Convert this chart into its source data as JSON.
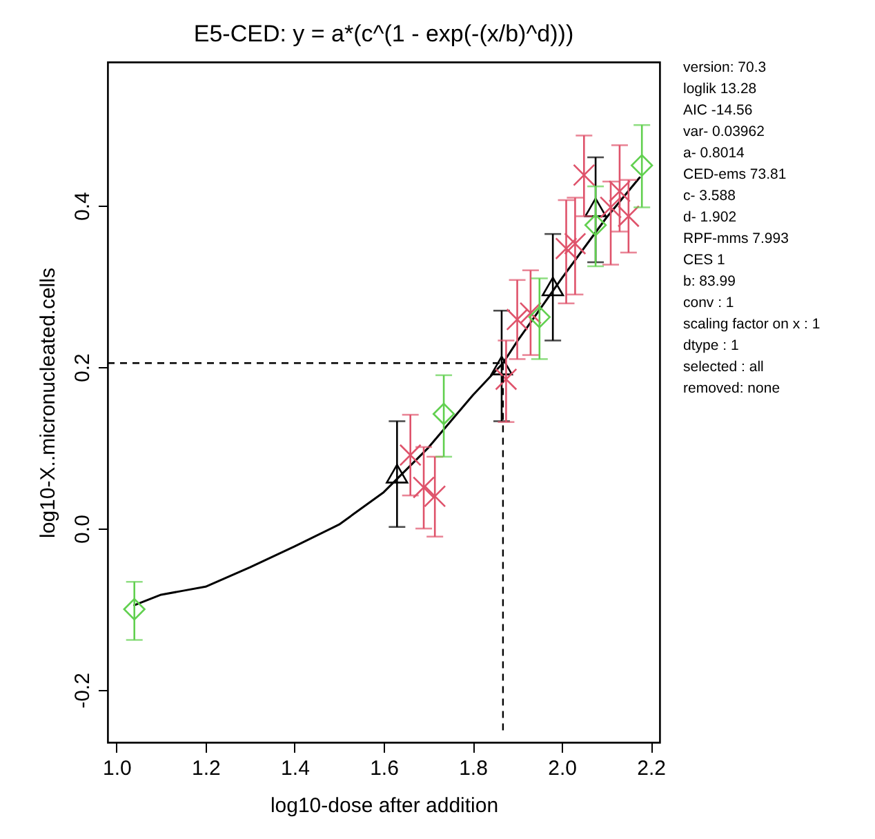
{
  "chart_data": {
    "type": "scatter",
    "title": "E5-CED: y = a*(c^(1 - exp(-(x/b)^d)))",
    "xlabel": "log10-dose after addition",
    "ylabel": "log10-X..micronucleated.cells",
    "xlim": [
      0.98,
      2.22
    ],
    "ylim": [
      -0.265,
      0.578
    ],
    "xticks": [
      {
        "value": 1,
        "label": "1.0"
      },
      {
        "value": 1.2,
        "label": "1.2"
      },
      {
        "value": 1.4,
        "label": "1.4"
      },
      {
        "value": 1.6,
        "label": "1.6"
      },
      {
        "value": 1.8,
        "label": "1.8"
      },
      {
        "value": 2,
        "label": "2.0"
      },
      {
        "value": 2.2,
        "label": "2.2"
      }
    ],
    "yticks": [
      {
        "value": -0.2,
        "label": "-0.2"
      },
      {
        "value": 0,
        "label": "0.0"
      },
      {
        "value": 0.2,
        "label": "0.2"
      },
      {
        "value": 0.4,
        "label": "0.4"
      }
    ],
    "grid": false,
    "series": [
      {
        "type": "line",
        "color": "#000000",
        "line_style": "solid",
        "x": [
          1.04,
          1.1,
          1.15,
          1.2,
          1.3,
          1.4,
          1.5,
          1.6,
          1.7,
          1.8,
          1.868,
          1.9,
          2.0,
          2.1,
          2.175
        ],
        "values": [
          -0.095,
          -0.082,
          -0.077,
          -0.072,
          -0.048,
          -0.022,
          0.005,
          0.045,
          0.1,
          0.165,
          0.205,
          0.232,
          0.31,
          0.385,
          0.435
        ]
      },
      {
        "color": "#000000",
        "marker": "triangle",
        "x": [
          1.63,
          1.865,
          1.98,
          2.076
        ],
        "values": [
          0.068,
          0.202,
          0.3,
          0.398
        ],
        "errors": [
          [
            0.002,
            0.133
          ],
          [
            0.133,
            0.27
          ],
          [
            0.233,
            0.365
          ],
          [
            0.33,
            0.46
          ]
        ]
      },
      {
        "color": "#df536b",
        "marker": "cross",
        "x": [
          1.66,
          1.69,
          1.715,
          1.875,
          1.9,
          1.93,
          2.01,
          2.03,
          2.05,
          2.11,
          2.13,
          2.15
        ],
        "values": [
          0.091,
          0.051,
          0.04,
          0.185,
          0.259,
          0.267,
          0.347,
          0.353,
          0.438,
          0.398,
          0.418,
          0.387
        ],
        "errors": [
          [
            0.041,
            0.141
          ],
          [
            0.0,
            0.101
          ],
          [
            -0.01,
            0.089
          ],
          [
            0.132,
            0.233
          ],
          [
            0.21,
            0.308
          ],
          [
            0.215,
            0.32
          ],
          [
            0.279,
            0.407
          ],
          [
            0.29,
            0.41
          ],
          [
            0.387,
            0.487
          ],
          [
            0.327,
            0.43
          ],
          [
            0.368,
            0.475
          ],
          [
            0.342,
            0.432
          ]
        ]
      },
      {
        "color": "#61d04f",
        "marker": "diamond",
        "x": [
          1.04,
          1.735,
          1.95,
          2.076,
          2.18
        ],
        "values": [
          -0.1,
          0.142,
          0.262,
          0.376,
          0.45
        ],
        "errors": [
          [
            -0.138,
            -0.066
          ],
          [
            0.089,
            0.19
          ],
          [
            0.21,
            0.31
          ],
          [
            0.325,
            0.424
          ],
          [
            0.398,
            0.5
          ]
        ]
      }
    ],
    "ref_lines": [
      {
        "axis": "y",
        "value": 0.205,
        "color": "#000000",
        "line_style": "dashed"
      },
      {
        "axis": "x",
        "value": 1.868,
        "color": "#000000",
        "line_style": "dashed"
      }
    ],
    "annotations": [
      "version: 70.3",
      "loglik   13.28",
      "AIC   -14.56",
      "var-   0.03962",
      "a-   0.8014",
      "CED-ems   73.81",
      "c-   3.588",
      "d-   1.902",
      "RPF-mms   7.993",
      "CES   1",
      "b: 83.99",
      "conv :  1",
      "scaling factor on x :  1",
      "dtype :  1",
      " selected :  all",
      "removed: none"
    ]
  }
}
